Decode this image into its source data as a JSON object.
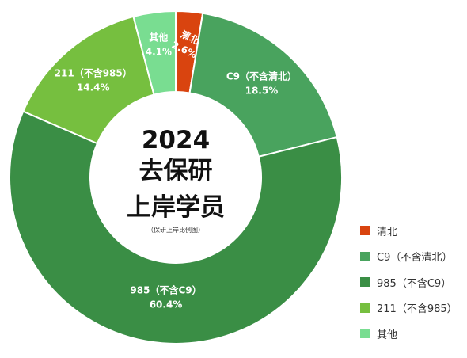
{
  "chart_data": {
    "type": "pie",
    "variant": "donut",
    "title_lines": [
      "2024",
      "去保研",
      "上岸学员"
    ],
    "subtitle": "（保研上岸比例图）",
    "legend_position": "bottom-right",
    "slices": [
      {
        "name": "清北",
        "value": 2.6,
        "label": "2.6%",
        "color": "#d9440f"
      },
      {
        "name": "C9（不含清北）",
        "value": 18.5,
        "label": "18.5%",
        "color": "#49a35e"
      },
      {
        "name": "985（不含C9）",
        "value": 60.4,
        "label": "60.4%",
        "color": "#3a8e45"
      },
      {
        "name": "211（不含985）",
        "value": 14.4,
        "label": "14.4%",
        "color": "#76bf3f"
      },
      {
        "name": "其他",
        "value": 4.1,
        "label": "4.1%",
        "color": "#79dd91"
      }
    ]
  }
}
